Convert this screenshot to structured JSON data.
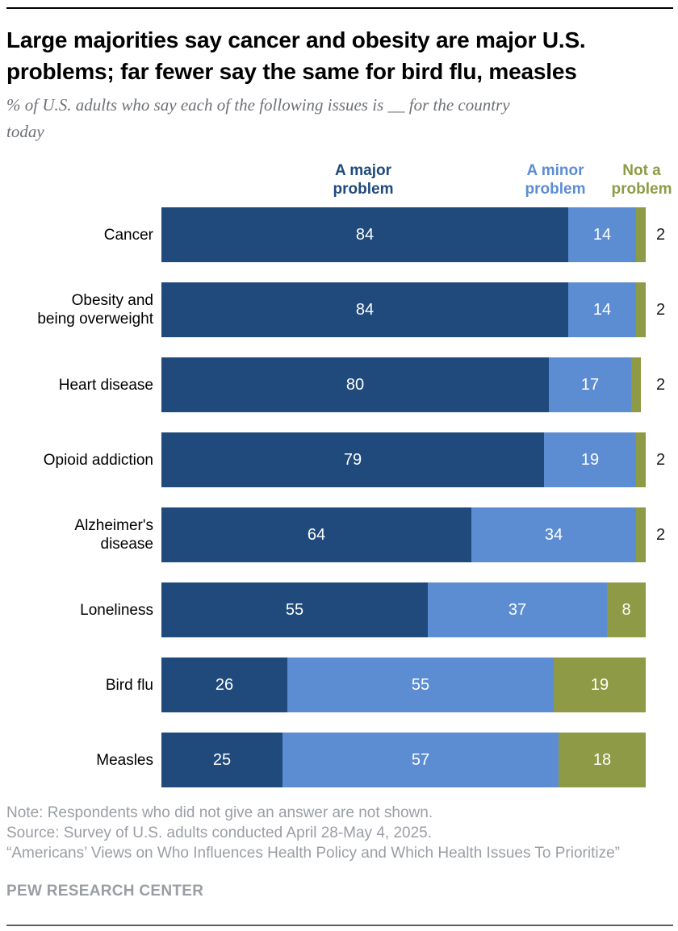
{
  "title": "Large majorities say cancer and obesity are major U.S.\nproblems; far fewer say the same for bird flu, measles",
  "subtitle": "% of U.S. adults who say each of the following issues is __ for the country\ntoday",
  "legend": {
    "major": "A major problem",
    "minor": "A minor problem",
    "not": "Not a problem"
  },
  "colors": {
    "major": "#204a7c",
    "minor": "#5c8dd2",
    "not": "#8e9a45",
    "title_text": "#000000",
    "subtitle_text": "#6e7176",
    "footer_text": "#9a9ea4",
    "value_label_inside": "#ffffff",
    "value_label_outside": "#1a1a1a"
  },
  "chart_data": {
    "type": "bar",
    "orientation": "horizontal-stacked",
    "xlim": [
      0,
      100
    ],
    "grid": false,
    "legend_position": "top-as-column-headers",
    "inside_label_min": 5,
    "categories": [
      "Cancer",
      "Obesity and\nbeing overweight",
      "Heart disease",
      "Opioid addiction",
      "Alzheimer's\ndisease",
      "Loneliness",
      "Bird flu",
      "Measles"
    ],
    "series": [
      {
        "key": "major",
        "name": "A major problem",
        "color": "#204a7c",
        "values": [
          84,
          84,
          80,
          79,
          64,
          55,
          26,
          25
        ]
      },
      {
        "key": "minor",
        "name": "A minor problem",
        "color": "#5c8dd2",
        "values": [
          14,
          14,
          17,
          19,
          34,
          37,
          55,
          57
        ]
      },
      {
        "key": "not",
        "name": "Not a problem",
        "color": "#8e9a45",
        "values": [
          2,
          2,
          2,
          2,
          2,
          8,
          19,
          18
        ]
      }
    ]
  },
  "footer": {
    "note": "Note: Respondents who did not give an answer are not shown.",
    "source": "Source: Survey of U.S. adults conducted April 28-May 4, 2025.",
    "report": "“Americans’ Views on Who Influences Health Policy and Which Health Issues To Prioritize”",
    "brand": "PEW RESEARCH CENTER"
  }
}
